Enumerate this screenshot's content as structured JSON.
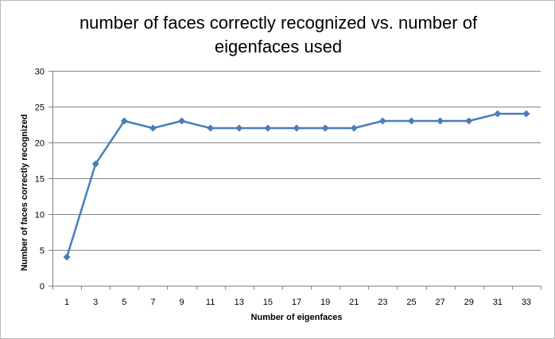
{
  "chart_data": {
    "type": "line",
    "title": "number of faces correctly recognized vs. number of eigenfaces used",
    "title_lines": [
      "number of faces correctly recognized vs. number of",
      "eigenfaces used"
    ],
    "xlabel": "Number of eigenfaces",
    "ylabel": "Number of faces correctly recognized",
    "x": [
      1,
      3,
      5,
      7,
      9,
      11,
      13,
      15,
      17,
      19,
      21,
      23,
      25,
      27,
      29,
      31,
      33
    ],
    "series": [
      {
        "values": [
          4,
          17,
          23,
          22,
          23,
          22,
          22,
          22,
          22,
          22,
          22,
          23,
          23,
          23,
          23,
          24,
          24
        ],
        "color": "#4a7ebb"
      }
    ],
    "ylim": [
      0,
      30
    ],
    "yticks": [
      0,
      5,
      10,
      15,
      20,
      25,
      30
    ],
    "grid": true,
    "legend": "none",
    "marker": "diamond"
  }
}
